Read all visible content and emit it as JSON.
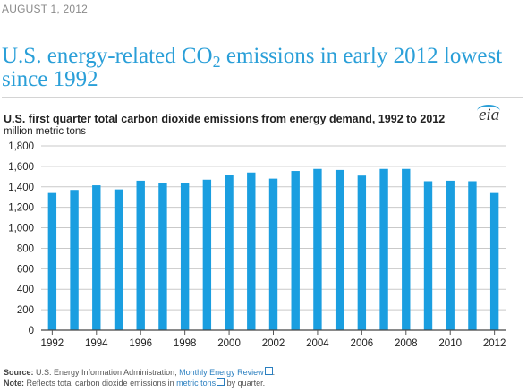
{
  "article": {
    "date": "AUGUST 1, 2012",
    "headline_pre": "U.S. energy-related CO",
    "headline_sub": "2",
    "headline_post": " emissions in early 2012 lowest since 1992"
  },
  "chart_data": {
    "type": "bar",
    "title": "U.S. first quarter total carbon dioxide emissions from energy demand, 1992 to 2012",
    "ylabel": "million metric tons",
    "ylim": [
      0,
      1800
    ],
    "yticks": [
      "0",
      "200",
      "400",
      "600",
      "800",
      "1,000",
      "1,200",
      "1,400",
      "1,600",
      "1,800"
    ],
    "xtick_labels": [
      "1992",
      "1994",
      "1996",
      "1998",
      "2000",
      "2002",
      "2004",
      "2006",
      "2008",
      "2010",
      "2012"
    ],
    "categories": [
      "1992",
      "1993",
      "1994",
      "1995",
      "1996",
      "1997",
      "1998",
      "1999",
      "2000",
      "2001",
      "2002",
      "2003",
      "2004",
      "2005",
      "2006",
      "2007",
      "2008",
      "2009",
      "2010",
      "2011",
      "2012"
    ],
    "values": [
      1340,
      1370,
      1415,
      1375,
      1460,
      1435,
      1435,
      1470,
      1515,
      1540,
      1480,
      1555,
      1575,
      1565,
      1510,
      1575,
      1575,
      1455,
      1460,
      1455,
      1340
    ],
    "bar_color": "#1a9ee0",
    "grid": true,
    "logo": "eia"
  },
  "footer": {
    "source_label": "Source:",
    "source_text": " U.S. Energy Information Administration, ",
    "source_link": "Monthly Energy Review",
    "source_end": ".",
    "note_label": "Note:",
    "note_text": " Reflects total carbon dioxide emissions in ",
    "note_link": "metric tons",
    "note_end": " by quarter."
  }
}
